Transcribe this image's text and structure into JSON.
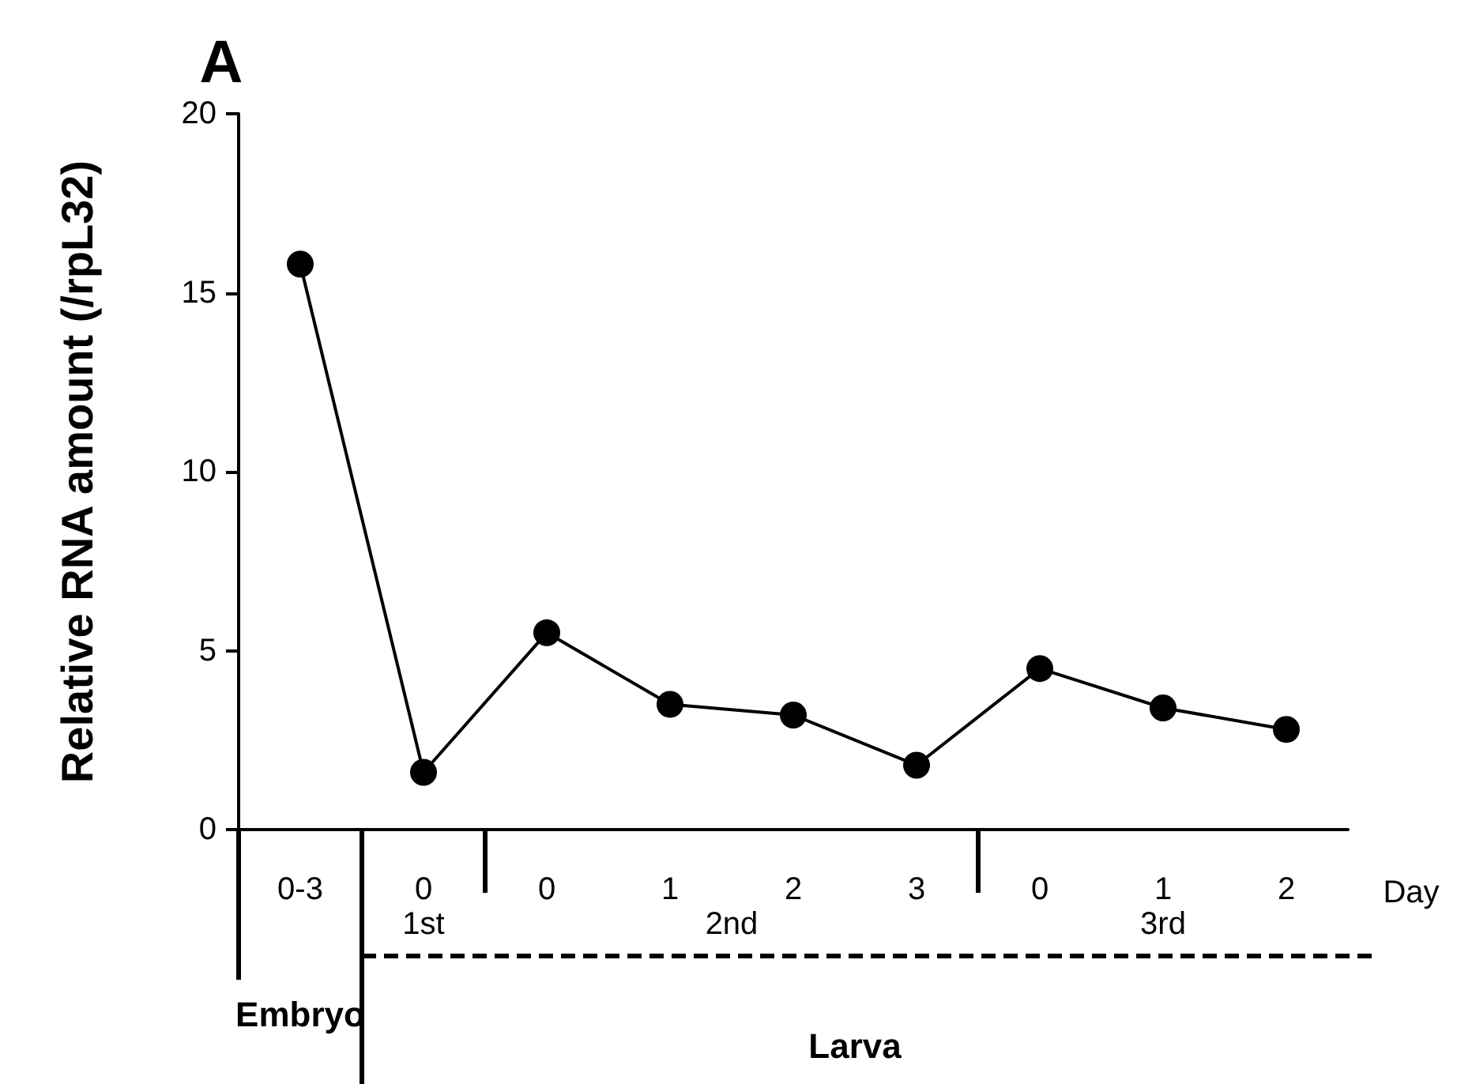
{
  "chart_data": {
    "type": "line",
    "title": "A",
    "xlabel": "Day",
    "ylabel": "Relative RNA amount (/rpL32)",
    "categories": [
      "0-3",
      "0",
      "0",
      "1",
      "2",
      "3",
      "0",
      "1",
      "2"
    ],
    "series": [
      {
        "color": "#000000",
        "values": [
          15.8,
          1.6,
          5.5,
          3.5,
          3.2,
          1.8,
          4.5,
          3.4,
          2.8
        ]
      }
    ],
    "ylim": [
      0,
      20
    ],
    "yticks": [
      0,
      5,
      10,
      15,
      20
    ],
    "marker": "circle",
    "line_style": "solid",
    "annotations": [
      "1st",
      "2nd",
      "3rd",
      "Embryo",
      "Larva"
    ]
  }
}
